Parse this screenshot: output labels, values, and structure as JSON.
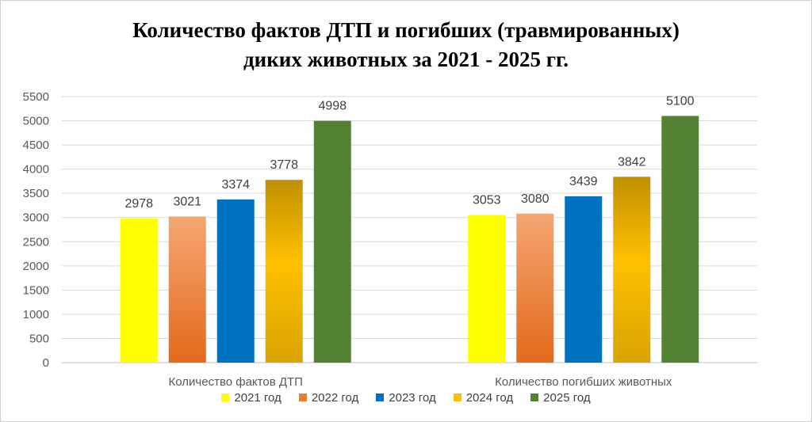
{
  "chart_data": {
    "type": "bar",
    "title_line1": "Количество фактов ДТП и погибших (травмированных)",
    "title_line2": "диких животных за 2021 - 2025 гг.",
    "categories": [
      "Количество фактов ДТП",
      "Количество погибших животных"
    ],
    "series": [
      {
        "name": "2021 год",
        "values": [
          2978,
          3053
        ],
        "color": "#FFFF00"
      },
      {
        "name": "2022 год",
        "values": [
          3021,
          3080
        ],
        "color": "#ED7D31"
      },
      {
        "name": "2023 год",
        "values": [
          3374,
          3439
        ],
        "color": "#0070C0"
      },
      {
        "name": "2024 год",
        "values": [
          3778,
          3842
        ],
        "color": "#FFC000"
      },
      {
        "name": "2025 год",
        "values": [
          4998,
          5100
        ],
        "color": "#548235"
      }
    ],
    "yticks": [
      "0",
      "500",
      "1000",
      "1500",
      "2000",
      "2500",
      "3000",
      "3500",
      "4000",
      "4500",
      "5000",
      "5500"
    ],
    "ylim": [
      0,
      5500
    ],
    "grid": true,
    "legend_position": "bottom"
  }
}
